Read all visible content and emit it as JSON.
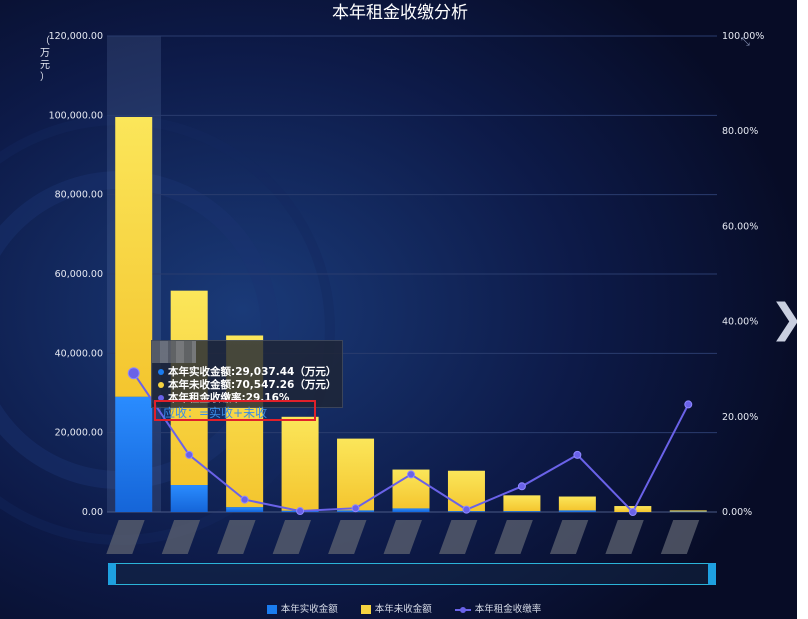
{
  "chart_data": {
    "type": "bar",
    "title": "本年租金收缴分析",
    "ylabel": "（万元）",
    "ylim": [
      0,
      120000
    ],
    "y2lim": [
      0,
      100
    ],
    "y_ticks": [
      "0.00",
      "20,000.00",
      "40,000.00",
      "60,000.00",
      "80,000.00",
      "100,000.00",
      "120,000.00"
    ],
    "y2_ticks": [
      "0.00%",
      "20.00%",
      "40.00%",
      "60.00%",
      "80.00%",
      "100.00%"
    ],
    "categories": [
      "",
      "",
      "",
      "",
      "",
      "",
      "",
      "",
      "",
      "",
      ""
    ],
    "series": [
      {
        "name": "本年实收金额",
        "color": "#1a7cf0",
        "stack": "a",
        "values": [
          29037.44,
          6800,
          1200,
          300,
          400,
          900,
          200,
          200,
          400,
          0,
          100
        ]
      },
      {
        "name": "本年未收金额",
        "color": "#f5d340",
        "stack": "a",
        "values": [
          70547.26,
          49000,
          43300,
          23700,
          18100,
          9800,
          10200,
          4000,
          3500,
          1500,
          300
        ]
      },
      {
        "name": "本年租金收缴率",
        "color": "#6a62e8",
        "type": "line",
        "axis": "right",
        "values": [
          29.16,
          12.0,
          2.6,
          0.2,
          0.8,
          7.9,
          0.5,
          5.4,
          12.0,
          0,
          22.6
        ]
      }
    ],
    "legend_position": "bottom-center",
    "grid": true
  },
  "tooltip": {
    "rows": [
      {
        "label": "本年实收金额:29,037.44（万元）",
        "color": "#1a7cf0"
      },
      {
        "label": "本年未收金额:70,547.26（万元）",
        "color": "#f5d340"
      },
      {
        "label": "本年租金收缴率:29.16%",
        "color": "#6a62e8"
      }
    ]
  },
  "annotation": {
    "formula": "应收：=实收+未收"
  },
  "legend": {
    "items": [
      {
        "label": "本年实收金额",
        "color": "#1a7cf0"
      },
      {
        "label": "本年未收金额",
        "color": "#f5d340"
      },
      {
        "label": "本年租金收缴率",
        "color": "#6a62e8"
      }
    ]
  },
  "icons": {
    "next": "chevron-right-icon",
    "expand": "expand-icon"
  },
  "labels": {
    "next_glyph": "❯",
    "expand_glyph": "⤡"
  }
}
